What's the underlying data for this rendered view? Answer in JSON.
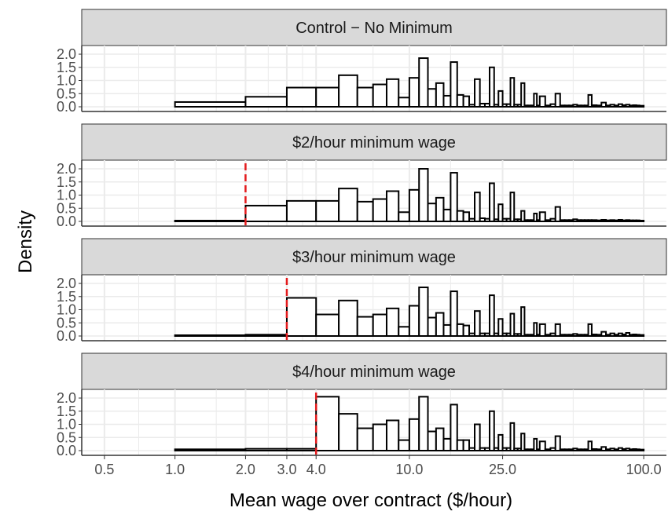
{
  "chart_data": {
    "type": "histogram",
    "facet_layout": "vertical",
    "xlabel": "Mean wage over contract ($/hour)",
    "ylabel": "Density",
    "x_scale": "log10",
    "x_tick_labels": [
      "0.5",
      "1.0",
      "2.0",
      "3.0",
      "4.0",
      "10.0",
      "25.0",
      "100.0"
    ],
    "x_ticks": [
      0.5,
      1.0,
      2.0,
      3.0,
      4.0,
      10.0,
      25.0,
      100.0
    ],
    "y_tick_labels": [
      "0.0",
      "0.5",
      "1.0",
      "1.5",
      "2.0"
    ],
    "y_ticks": [
      0,
      0.5,
      1.0,
      1.5,
      2.0
    ],
    "ylim": [
      0,
      2.15
    ],
    "grid": true,
    "colors": {
      "bar_fill": "#ffffff",
      "bar_outline": "#000000",
      "strip_bg": "#d9d9d9",
      "minimum_line": "#e41a1c",
      "grid": "#ebebeb"
    },
    "bins": [
      [
        1.0,
        2.0
      ],
      [
        2.0,
        3.0
      ],
      [
        3.0,
        4.0
      ],
      [
        4.0,
        5.0
      ],
      [
        5.0,
        6.0
      ],
      [
        6.0,
        7.0
      ],
      [
        7.0,
        8.0
      ],
      [
        8.0,
        9.0
      ],
      [
        9.0,
        10.0
      ],
      [
        10.0,
        11.0
      ],
      [
        11.0,
        12.0
      ],
      [
        12.0,
        13.0
      ],
      [
        13.0,
        14.0
      ],
      [
        14.0,
        15.0
      ],
      [
        15.0,
        16.0
      ],
      [
        16.0,
        17.0
      ],
      [
        17.0,
        18.0
      ],
      [
        18.0,
        19.0
      ],
      [
        19.0,
        20.0
      ],
      [
        20.0,
        21.0
      ],
      [
        21.0,
        22.0
      ],
      [
        22.0,
        23.0
      ],
      [
        23.0,
        24.0
      ],
      [
        24.0,
        25.0
      ],
      [
        25.0,
        26.0
      ],
      [
        26.0,
        27.0
      ],
      [
        27.0,
        28.0
      ],
      [
        28.0,
        29.0
      ],
      [
        29.0,
        30.0
      ],
      [
        30.0,
        31.0
      ],
      [
        31.0,
        32.0
      ],
      [
        32.0,
        33.0
      ],
      [
        33.0,
        34.0
      ],
      [
        34.0,
        35.0
      ],
      [
        35.0,
        36.0
      ],
      [
        36.0,
        38.0
      ],
      [
        38.0,
        40.0
      ],
      [
        40.0,
        42.0
      ],
      [
        42.0,
        44.0
      ],
      [
        44.0,
        46.0
      ],
      [
        46.0,
        48.0
      ],
      [
        48.0,
        50.0
      ],
      [
        50.0,
        52.0
      ],
      [
        52.0,
        54.0
      ],
      [
        54.0,
        56.0
      ],
      [
        56.0,
        58.0
      ],
      [
        58.0,
        60.0
      ],
      [
        60.0,
        63.0
      ],
      [
        63.0,
        66.0
      ],
      [
        66.0,
        69.0
      ],
      [
        69.0,
        72.0
      ],
      [
        72.0,
        75.0
      ],
      [
        75.0,
        78.0
      ],
      [
        78.0,
        81.0
      ],
      [
        81.0,
        84.0
      ],
      [
        84.0,
        87.0
      ],
      [
        87.0,
        90.0
      ],
      [
        90.0,
        93.0
      ],
      [
        93.0,
        96.0
      ],
      [
        96.0,
        100.0
      ]
    ],
    "panels": [
      {
        "title": "Control − No Minimum",
        "minimum_wage": null,
        "density": [
          0.18,
          0.38,
          0.73,
          0.73,
          1.2,
          0.73,
          0.85,
          1.05,
          0.35,
          1.1,
          1.85,
          0.68,
          0.9,
          0.42,
          1.7,
          0.45,
          0.4,
          0.08,
          1.05,
          0.12,
          0.12,
          1.5,
          0.08,
          0.6,
          0.1,
          0.1,
          1.1,
          0.08,
          0.08,
          0.9,
          0.05,
          0.05,
          0.05,
          0.5,
          0.05,
          0.4,
          0.05,
          0.1,
          0.5,
          0.05,
          0.05,
          0.05,
          0.08,
          0.05,
          0.05,
          0.05,
          0.45,
          0.06,
          0.05,
          0.16,
          0.05,
          0.08,
          0.05,
          0.1,
          0.06,
          0.08,
          0.05,
          0.06,
          0.05,
          0.04
        ]
      },
      {
        "title": "$2/hour minimum wage",
        "minimum_wage": 2.0,
        "density": [
          0.03,
          0.6,
          0.78,
          0.78,
          1.25,
          0.75,
          0.85,
          1.15,
          0.35,
          1.2,
          2.0,
          0.68,
          0.9,
          0.45,
          1.85,
          0.4,
          0.35,
          0.1,
          1.1,
          0.12,
          0.1,
          1.45,
          0.08,
          0.65,
          0.1,
          0.1,
          1.1,
          0.08,
          0.08,
          0.4,
          0.05,
          0.05,
          0.05,
          0.3,
          0.05,
          0.35,
          0.05,
          0.1,
          0.55,
          0.05,
          0.05,
          0.05,
          0.08,
          0.05,
          0.05,
          0.05,
          0.05,
          0.05,
          0.04,
          0.06,
          0.04,
          0.05,
          0.04,
          0.06,
          0.04,
          0.05,
          0.04,
          0.04,
          0.04,
          0.03
        ]
      },
      {
        "title": "$3/hour minimum wage",
        "minimum_wage": 3.0,
        "density": [
          0.03,
          0.05,
          1.45,
          0.82,
          1.35,
          0.73,
          0.82,
          1.05,
          0.35,
          1.15,
          1.85,
          0.7,
          0.88,
          0.42,
          1.7,
          0.45,
          0.4,
          0.1,
          0.95,
          0.1,
          0.1,
          1.55,
          0.1,
          0.65,
          0.1,
          0.1,
          0.85,
          0.08,
          0.08,
          1.1,
          0.05,
          0.05,
          0.05,
          0.5,
          0.05,
          0.45,
          0.05,
          0.1,
          0.45,
          0.05,
          0.05,
          0.05,
          0.08,
          0.05,
          0.05,
          0.05,
          0.45,
          0.06,
          0.05,
          0.16,
          0.05,
          0.1,
          0.05,
          0.1,
          0.06,
          0.12,
          0.05,
          0.06,
          0.05,
          0.04
        ]
      },
      {
        "title": "$4/hour minimum wage",
        "minimum_wage": 4.0,
        "density": [
          0.05,
          0.07,
          0.07,
          2.05,
          1.4,
          0.85,
          1.0,
          1.15,
          0.4,
          1.2,
          2.05,
          0.73,
          0.85,
          0.45,
          1.75,
          0.4,
          0.4,
          0.1,
          1.0,
          0.1,
          0.1,
          1.5,
          0.1,
          0.6,
          0.1,
          0.1,
          1.05,
          0.08,
          0.08,
          0.65,
          0.05,
          0.05,
          0.05,
          0.45,
          0.05,
          0.35,
          0.05,
          0.1,
          0.55,
          0.05,
          0.05,
          0.05,
          0.08,
          0.05,
          0.05,
          0.05,
          0.35,
          0.06,
          0.05,
          0.14,
          0.05,
          0.08,
          0.05,
          0.1,
          0.06,
          0.08,
          0.05,
          0.06,
          0.05,
          0.04
        ]
      }
    ]
  }
}
